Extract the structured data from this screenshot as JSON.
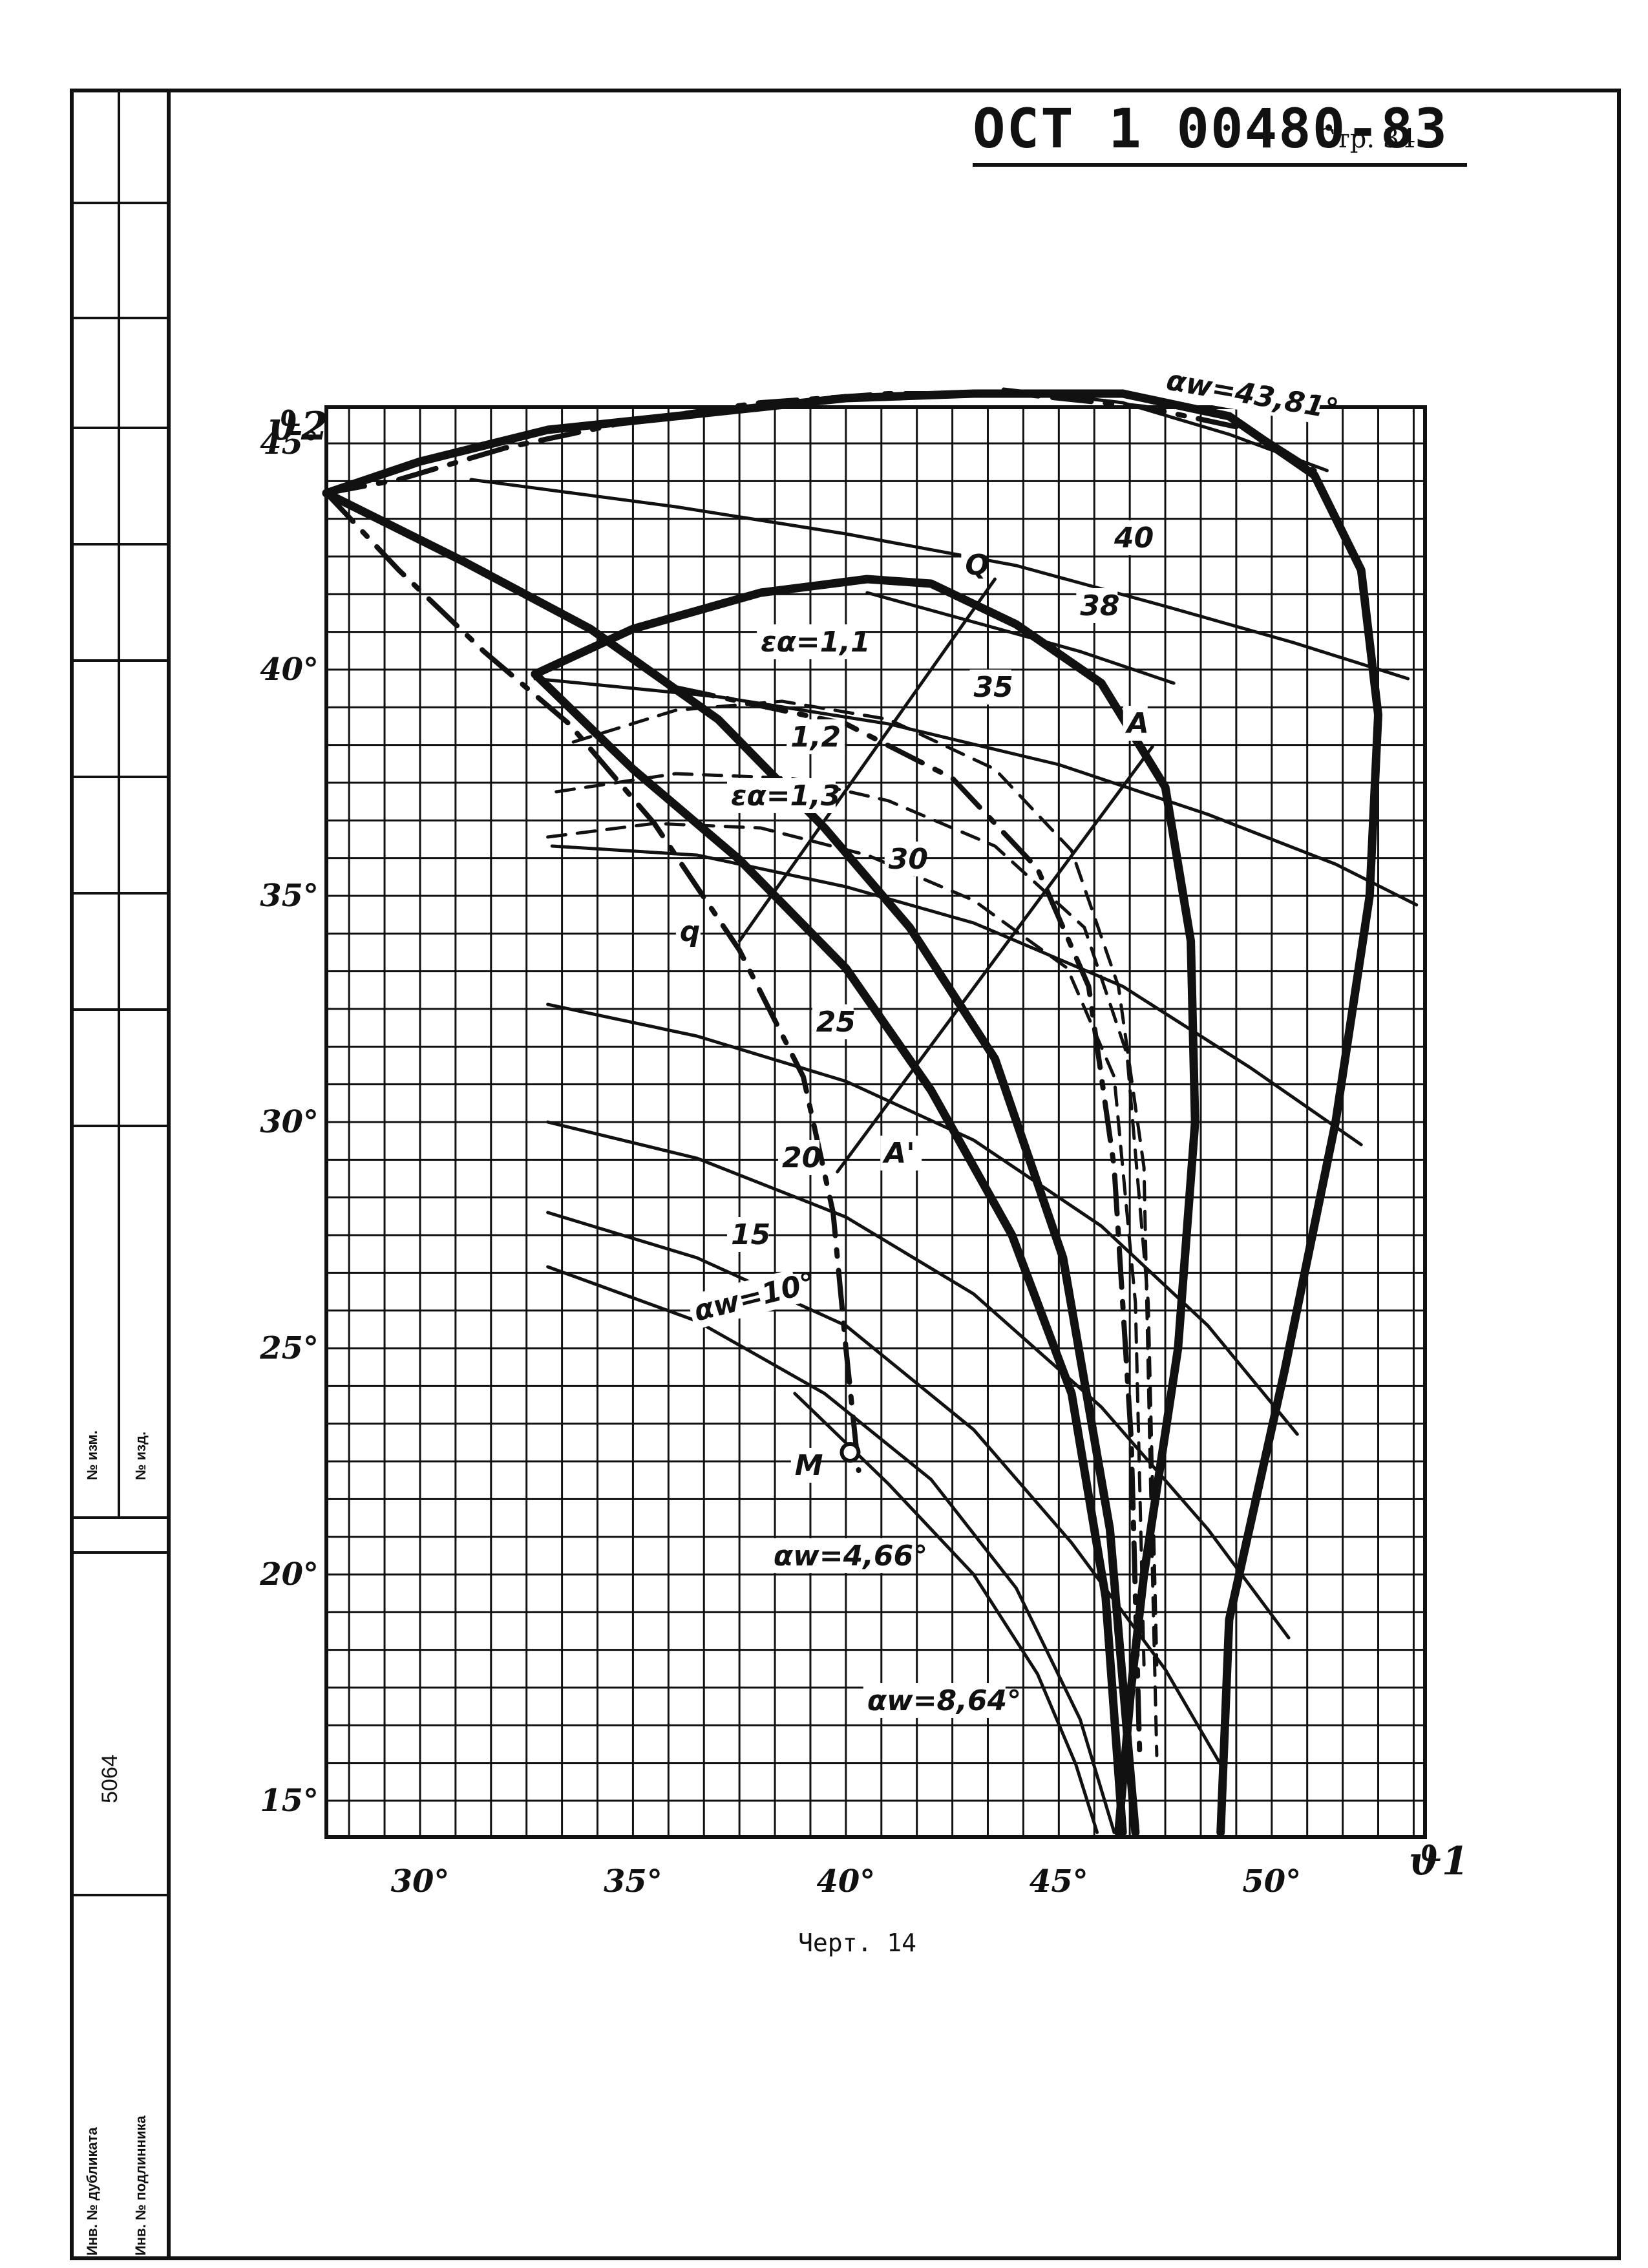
{
  "header": {
    "doc_number": "ОСТ 1 00480-83",
    "page_label": "Стр. 34"
  },
  "caption": "Черт. 14",
  "side_block": {
    "number": "5064",
    "label_change": "№ изм.",
    "label_doc": "№ изд.",
    "label_dup": "Инв. № дубликата",
    "label_orig": "Инв. № подлинника"
  },
  "chart_data": {
    "type": "line",
    "xlabel": "ϑ1",
    "ylabel": "ϑ2",
    "xlim": [
      27.8,
      53.6
    ],
    "ylim": [
      14.2,
      45.8
    ],
    "x_ticks": [
      {
        "v": 30,
        "label": "30°"
      },
      {
        "v": 35,
        "label": "35°"
      },
      {
        "v": 40,
        "label": "40°"
      },
      {
        "v": 45,
        "label": "45°"
      },
      {
        "v": 50,
        "label": "50°"
      }
    ],
    "y_ticks": [
      {
        "v": 15,
        "label": "15°"
      },
      {
        "v": 20,
        "label": "20°"
      },
      {
        "v": 25,
        "label": "25°"
      },
      {
        "v": 30,
        "label": "30°"
      },
      {
        "v": 35,
        "label": "35°"
      },
      {
        "v": 40,
        "label": "40°"
      },
      {
        "v": 45,
        "label": "45°"
      }
    ],
    "grid": true,
    "series": [
      {
        "style": "thin",
        "name": "40",
        "points": [
          [
            31.2,
            44.2
          ],
          [
            36,
            43.6
          ],
          [
            40,
            43
          ],
          [
            44,
            42.3
          ],
          [
            47.5,
            41.4
          ],
          [
            50.5,
            40.6
          ],
          [
            53.2,
            39.8
          ]
        ]
      },
      {
        "style": "thin",
        "name": "38",
        "points": [
          [
            40.5,
            41.7
          ],
          [
            43.2,
            41
          ],
          [
            45.5,
            40.4
          ],
          [
            47.7,
            39.7
          ]
        ]
      },
      {
        "style": "thin",
        "name": "35",
        "points": [
          [
            32.7,
            39.8
          ],
          [
            37,
            39.4
          ],
          [
            41,
            38.8
          ],
          [
            45,
            37.9
          ],
          [
            48.5,
            36.8
          ],
          [
            51.5,
            35.7
          ],
          [
            53.4,
            34.8
          ]
        ]
      },
      {
        "style": "thin",
        "name": "30",
        "points": [
          [
            33.1,
            36.1
          ],
          [
            36.5,
            35.9
          ],
          [
            40,
            35.2
          ],
          [
            43,
            34.4
          ],
          [
            46.5,
            33
          ],
          [
            49.5,
            31.2
          ],
          [
            52.1,
            29.5
          ]
        ]
      },
      {
        "style": "thin",
        "name": "25",
        "points": [
          [
            33,
            32.6
          ],
          [
            36.5,
            31.9
          ],
          [
            40,
            30.9
          ],
          [
            43,
            29.6
          ],
          [
            46,
            27.7
          ],
          [
            48.5,
            25.5
          ],
          [
            50.6,
            23.1
          ]
        ]
      },
      {
        "style": "thin",
        "name": "20",
        "points": [
          [
            33,
            30
          ],
          [
            36.5,
            29.2
          ],
          [
            40,
            27.9
          ],
          [
            43,
            26.2
          ],
          [
            46,
            23.7
          ],
          [
            48.5,
            21
          ],
          [
            50.4,
            18.6
          ]
        ]
      },
      {
        "style": "thin",
        "name": "15",
        "points": [
          [
            33,
            28
          ],
          [
            36.5,
            27
          ],
          [
            40,
            25.5
          ],
          [
            43,
            23.2
          ],
          [
            45.3,
            20.7
          ],
          [
            47.5,
            17.9
          ],
          [
            48.8,
            15.8
          ]
        ]
      },
      {
        "style": "thin",
        "name": "αw=10°",
        "points": [
          [
            33,
            26.8
          ],
          [
            36.5,
            25.6
          ],
          [
            39.5,
            24
          ],
          [
            42,
            22.1
          ],
          [
            44,
            19.7
          ],
          [
            45.5,
            16.8
          ],
          [
            46.3,
            14.3
          ]
        ]
      },
      {
        "style": "thin",
        "name": "αw=4,66°",
        "points": [
          [
            38.8,
            24
          ],
          [
            41,
            22
          ],
          [
            43,
            20
          ],
          [
            44.5,
            17.8
          ],
          [
            45.4,
            15.8
          ],
          [
            45.9,
            14.3
          ]
        ]
      },
      {
        "style": "thin",
        "name": "αw=43,81°",
        "points": [
          [
            43.7,
            46.2
          ],
          [
            46.5,
            45.9
          ],
          [
            49,
            45.2
          ],
          [
            51.3,
            44.4
          ]
        ]
      },
      {
        "style": "thin",
        "name": "Q-q",
        "points": [
          [
            37.5,
            34
          ],
          [
            43.5,
            42
          ]
        ]
      },
      {
        "style": "thin",
        "name": "A'-A",
        "points": [
          [
            39.8,
            28.9
          ],
          [
            47.2,
            38.3
          ]
        ]
      },
      {
        "style": "thick",
        "name": "upper boundary",
        "points": [
          [
            27.8,
            43.9
          ],
          [
            30,
            44.6
          ],
          [
            33,
            45.3
          ],
          [
            36,
            45.6
          ],
          [
            40,
            46
          ],
          [
            43,
            46.1
          ],
          [
            46.5,
            46.1
          ]
        ]
      },
      {
        "style": "thick",
        "name": "right closed curve",
        "points": [
          [
            46.5,
            46.1
          ],
          [
            49,
            45.6
          ],
          [
            51,
            44.3
          ],
          [
            52.1,
            42.2
          ],
          [
            52.5,
            39
          ],
          [
            52.3,
            35
          ],
          [
            51.5,
            30
          ],
          [
            50.3,
            24.5
          ],
          [
            49,
            19
          ],
          [
            48.8,
            14.3
          ]
        ]
      },
      {
        "style": "thick",
        "name": "inner closed curve",
        "points": [
          [
            32.7,
            39.9
          ],
          [
            35,
            40.9
          ],
          [
            38,
            41.7
          ],
          [
            40.5,
            42
          ],
          [
            42,
            41.9
          ],
          [
            44,
            41
          ],
          [
            46,
            39.7
          ],
          [
            47.5,
            37.4
          ],
          [
            48.1,
            34
          ],
          [
            48.2,
            30
          ],
          [
            47.8,
            25
          ],
          [
            47,
            20
          ],
          [
            46.7,
            17.5
          ],
          [
            46.4,
            14.3
          ]
        ]
      },
      {
        "style": "thick",
        "name": "diagonal main",
        "points": [
          [
            32.7,
            39.9
          ],
          [
            35,
            37.8
          ],
          [
            37.5,
            35.8
          ],
          [
            40,
            33.4
          ],
          [
            42,
            30.7
          ],
          [
            43.9,
            27.5
          ],
          [
            45.3,
            24
          ],
          [
            46.1,
            19.5
          ],
          [
            46.5,
            14.3
          ]
        ]
      },
      {
        "style": "thick",
        "name": "diagonal upper",
        "points": [
          [
            27.8,
            43.9
          ],
          [
            31,
            42.4
          ],
          [
            34,
            40.9
          ],
          [
            37,
            38.9
          ],
          [
            39.5,
            36.5
          ],
          [
            41.5,
            34.3
          ],
          [
            43.5,
            31.4
          ],
          [
            45.1,
            27
          ],
          [
            46.2,
            21
          ],
          [
            46.8,
            14.3
          ]
        ]
      },
      {
        "style": "dashdot",
        "name": "αw=43,81° dashed",
        "points": [
          [
            27.8,
            43.9
          ],
          [
            29.5,
            44.2
          ],
          [
            32,
            44.9
          ],
          [
            35,
            45.5
          ],
          [
            38,
            45.9
          ],
          [
            41,
            46.1
          ],
          [
            44,
            46.1
          ],
          [
            47,
            45.8
          ],
          [
            49.5,
            45.3
          ],
          [
            51,
            44.4
          ]
        ]
      },
      {
        "style": "dashdot",
        "name": "αw=8,64°",
        "points": [
          [
            27.8,
            43.9
          ],
          [
            29.5,
            42.2
          ],
          [
            31.5,
            40.4
          ],
          [
            33.5,
            38.8
          ],
          [
            35.5,
            36.6
          ],
          [
            37.5,
            33.8
          ],
          [
            39,
            31
          ],
          [
            39.7,
            28
          ],
          [
            40,
            25
          ],
          [
            40.3,
            22.3
          ]
        ]
      },
      {
        "style": "dashdot",
        "name": "dash-dot right",
        "points": [
          [
            36,
            39.6
          ],
          [
            40,
            38.8
          ],
          [
            42.5,
            37.6
          ],
          [
            44.5,
            35.6
          ],
          [
            45.7,
            33
          ],
          [
            46.3,
            29
          ],
          [
            46.7,
            23
          ],
          [
            46.9,
            16
          ]
        ]
      },
      {
        "style": "dashed",
        "name": "εα=1,1",
        "points": [
          [
            33.6,
            38.4
          ],
          [
            36,
            39.1
          ],
          [
            38.5,
            39.3
          ],
          [
            41,
            38.9
          ],
          [
            43.5,
            37.8
          ],
          [
            45.3,
            36
          ],
          [
            46.4,
            33
          ],
          [
            47,
            29
          ],
          [
            47.2,
            20
          ],
          [
            47.3,
            16
          ]
        ]
      },
      {
        "style": "dashed",
        "name": "εα=1,2",
        "points": [
          [
            33.2,
            37.3
          ],
          [
            36,
            37.7
          ],
          [
            38.7,
            37.6
          ],
          [
            41,
            37.1
          ],
          [
            43.5,
            36.1
          ],
          [
            45.6,
            34.3
          ],
          [
            46.6,
            31.5
          ],
          [
            47.1,
            26
          ],
          [
            47.3,
            18
          ]
        ]
      },
      {
        "style": "dashed",
        "name": "εα=1,3",
        "points": [
          [
            33,
            36.3
          ],
          [
            35.5,
            36.6
          ],
          [
            38,
            36.5
          ],
          [
            40.5,
            35.9
          ],
          [
            43,
            34.9
          ],
          [
            45.2,
            33.4
          ],
          [
            46.3,
            31
          ],
          [
            46.8,
            26
          ],
          [
            47,
            18
          ]
        ]
      }
    ],
    "labels": [
      {
        "text": "αw=43,81°",
        "x": 47.5,
        "y": 46.2,
        "rot": 10
      },
      {
        "text": "40",
        "x": 46.3,
        "y": 42.7,
        "rot": 0
      },
      {
        "text": "38",
        "x": 45.5,
        "y": 41.2,
        "rot": 0
      },
      {
        "text": "35",
        "x": 43,
        "y": 39.4,
        "rot": 0
      },
      {
        "text": "εα=1,1",
        "x": 38,
        "y": 40.4,
        "rot": 0
      },
      {
        "text": "1,2",
        "x": 38.7,
        "y": 38.3,
        "rot": 0
      },
      {
        "text": "εα=1,3",
        "x": 37.3,
        "y": 37,
        "rot": 0
      },
      {
        "text": "30",
        "x": 41,
        "y": 35.6,
        "rot": 0
      },
      {
        "text": "25",
        "x": 39.3,
        "y": 32,
        "rot": 0
      },
      {
        "text": "20",
        "x": 38.5,
        "y": 29,
        "rot": 0
      },
      {
        "text": "15",
        "x": 37.3,
        "y": 27.3,
        "rot": 0
      },
      {
        "text": "αw=10°",
        "x": 36.5,
        "y": 25.6,
        "rot": -14
      },
      {
        "text": "αw=4,66°",
        "x": 38.3,
        "y": 20.2,
        "rot": 0
      },
      {
        "text": "αw=8,64°",
        "x": 40.5,
        "y": 17,
        "rot": 0
      },
      {
        "text": "Q",
        "x": 42.8,
        "y": 42.1,
        "rot": 0
      },
      {
        "text": "q",
        "x": 36.1,
        "y": 34,
        "rot": 0
      },
      {
        "text": "A",
        "x": 46.6,
        "y": 38.6,
        "rot": 0
      },
      {
        "text": "A'",
        "x": 40.9,
        "y": 29.1,
        "rot": 0
      },
      {
        "text": "M",
        "x": 38.8,
        "y": 22.2,
        "rot": 0
      }
    ],
    "points": [
      {
        "name": "M",
        "x": 40.1,
        "y": 22.7,
        "marker": "open-circle"
      }
    ]
  }
}
